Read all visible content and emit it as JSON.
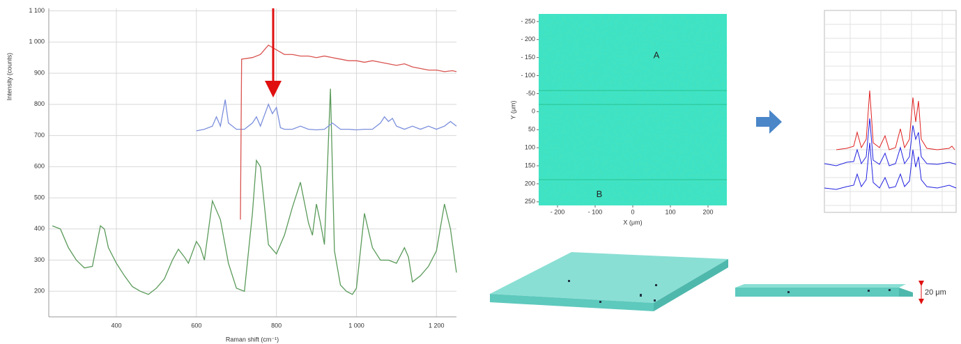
{
  "chart_data": [
    {
      "type": "line",
      "xlabel": "Raman shift (cm⁻¹)",
      "ylabel": "Intensity (counts)",
      "xlim": [
        231,
        1250
      ],
      "ylim": [
        118,
        1108
      ],
      "xticks": [
        400,
        600,
        800,
        {
          "value": 1000,
          "label": "1 000"
        },
        {
          "value": 1200,
          "label": "1 200"
        }
      ],
      "yticks": [
        200,
        300,
        400,
        500,
        600,
        700,
        800,
        900,
        {
          "value": 1000,
          "label": "1 000"
        },
        {
          "value": 1100,
          "label": "1 100"
        }
      ],
      "grid": true,
      "series": [
        {
          "color": "#5a9a5a",
          "x": [
            240,
            260,
            280,
            300,
            320,
            340,
            360,
            370,
            380,
            400,
            420,
            440,
            460,
            480,
            500,
            520,
            540,
            555,
            570,
            580,
            600,
            610,
            620,
            640,
            660,
            680,
            700,
            720,
            740,
            750,
            760,
            780,
            800,
            820,
            840,
            860,
            880,
            890,
            900,
            910,
            920,
            935,
            945,
            960,
            975,
            990,
            1000,
            1020,
            1040,
            1060,
            1080,
            1100,
            1120,
            1130,
            1140,
            1160,
            1180,
            1200,
            1220,
            1235,
            1250
          ],
          "values": [
            410,
            400,
            340,
            300,
            275,
            280,
            410,
            400,
            340,
            290,
            250,
            215,
            200,
            190,
            210,
            240,
            300,
            335,
            310,
            290,
            360,
            340,
            300,
            490,
            430,
            290,
            210,
            200,
            450,
            620,
            600,
            350,
            320,
            380,
            470,
            550,
            420,
            380,
            480,
            420,
            350,
            850,
            330,
            220,
            200,
            190,
            210,
            450,
            340,
            300,
            300,
            290,
            340,
            310,
            230,
            250,
            280,
            330,
            480,
            400,
            260
          ]
        },
        {
          "color": "#7b8fdc",
          "x": [
            600,
            620,
            640,
            650,
            660,
            672,
            680,
            700,
            720,
            740,
            750,
            760,
            780,
            790,
            800,
            810,
            820,
            840,
            860,
            880,
            900,
            920,
            940,
            960,
            980,
            1000,
            1020,
            1040,
            1060,
            1070,
            1080,
            1090,
            1100,
            1120,
            1140,
            1160,
            1180,
            1200,
            1220,
            1235,
            1250
          ],
          "values": [
            715,
            720,
            730,
            760,
            730,
            815,
            740,
            720,
            720,
            740,
            760,
            730,
            800,
            770,
            790,
            725,
            720,
            720,
            730,
            720,
            718,
            720,
            740,
            720,
            720,
            718,
            720,
            720,
            740,
            760,
            745,
            755,
            730,
            720,
            730,
            720,
            730,
            720,
            730,
            745,
            730
          ]
        },
        {
          "color": "#d9534f",
          "x": [
            710,
            713,
            740,
            760,
            780,
            800,
            820,
            840,
            860,
            880,
            900,
            920,
            940,
            960,
            980,
            1000,
            1020,
            1040,
            1060,
            1080,
            1100,
            1120,
            1140,
            1160,
            1180,
            1200,
            1220,
            1240,
            1250
          ],
          "values": [
            430,
            945,
            950,
            960,
            990,
            975,
            960,
            960,
            955,
            955,
            950,
            955,
            950,
            945,
            940,
            940,
            935,
            940,
            935,
            930,
            925,
            930,
            920,
            915,
            910,
            910,
            905,
            908,
            905
          ]
        }
      ]
    },
    {
      "type": "heatmap",
      "xlabel": "X (μm)",
      "ylabel": "Y (μm)",
      "xlim": [
        -250,
        250
      ],
      "ylim": [
        -271,
        260
      ],
      "y_inverted": true,
      "xticks": [
        {
          "value": -200,
          "label": "- 200"
        },
        {
          "value": -100,
          "label": "- 100"
        },
        0,
        100,
        200
      ],
      "yticks": [
        {
          "value": -250,
          "label": "- 250"
        },
        {
          "value": -200,
          "label": "- 200"
        },
        {
          "value": -150,
          "label": "- 150"
        },
        {
          "value": -100,
          "label": "- 100"
        },
        -50,
        0,
        50,
        100,
        150,
        200,
        250
      ],
      "annotations": [
        {
          "text": "A",
          "x": 63,
          "y": -155
        },
        {
          "text": "B",
          "x": -89,
          "y": 230
        }
      ]
    }
  ],
  "thickness_label": "20 μm"
}
